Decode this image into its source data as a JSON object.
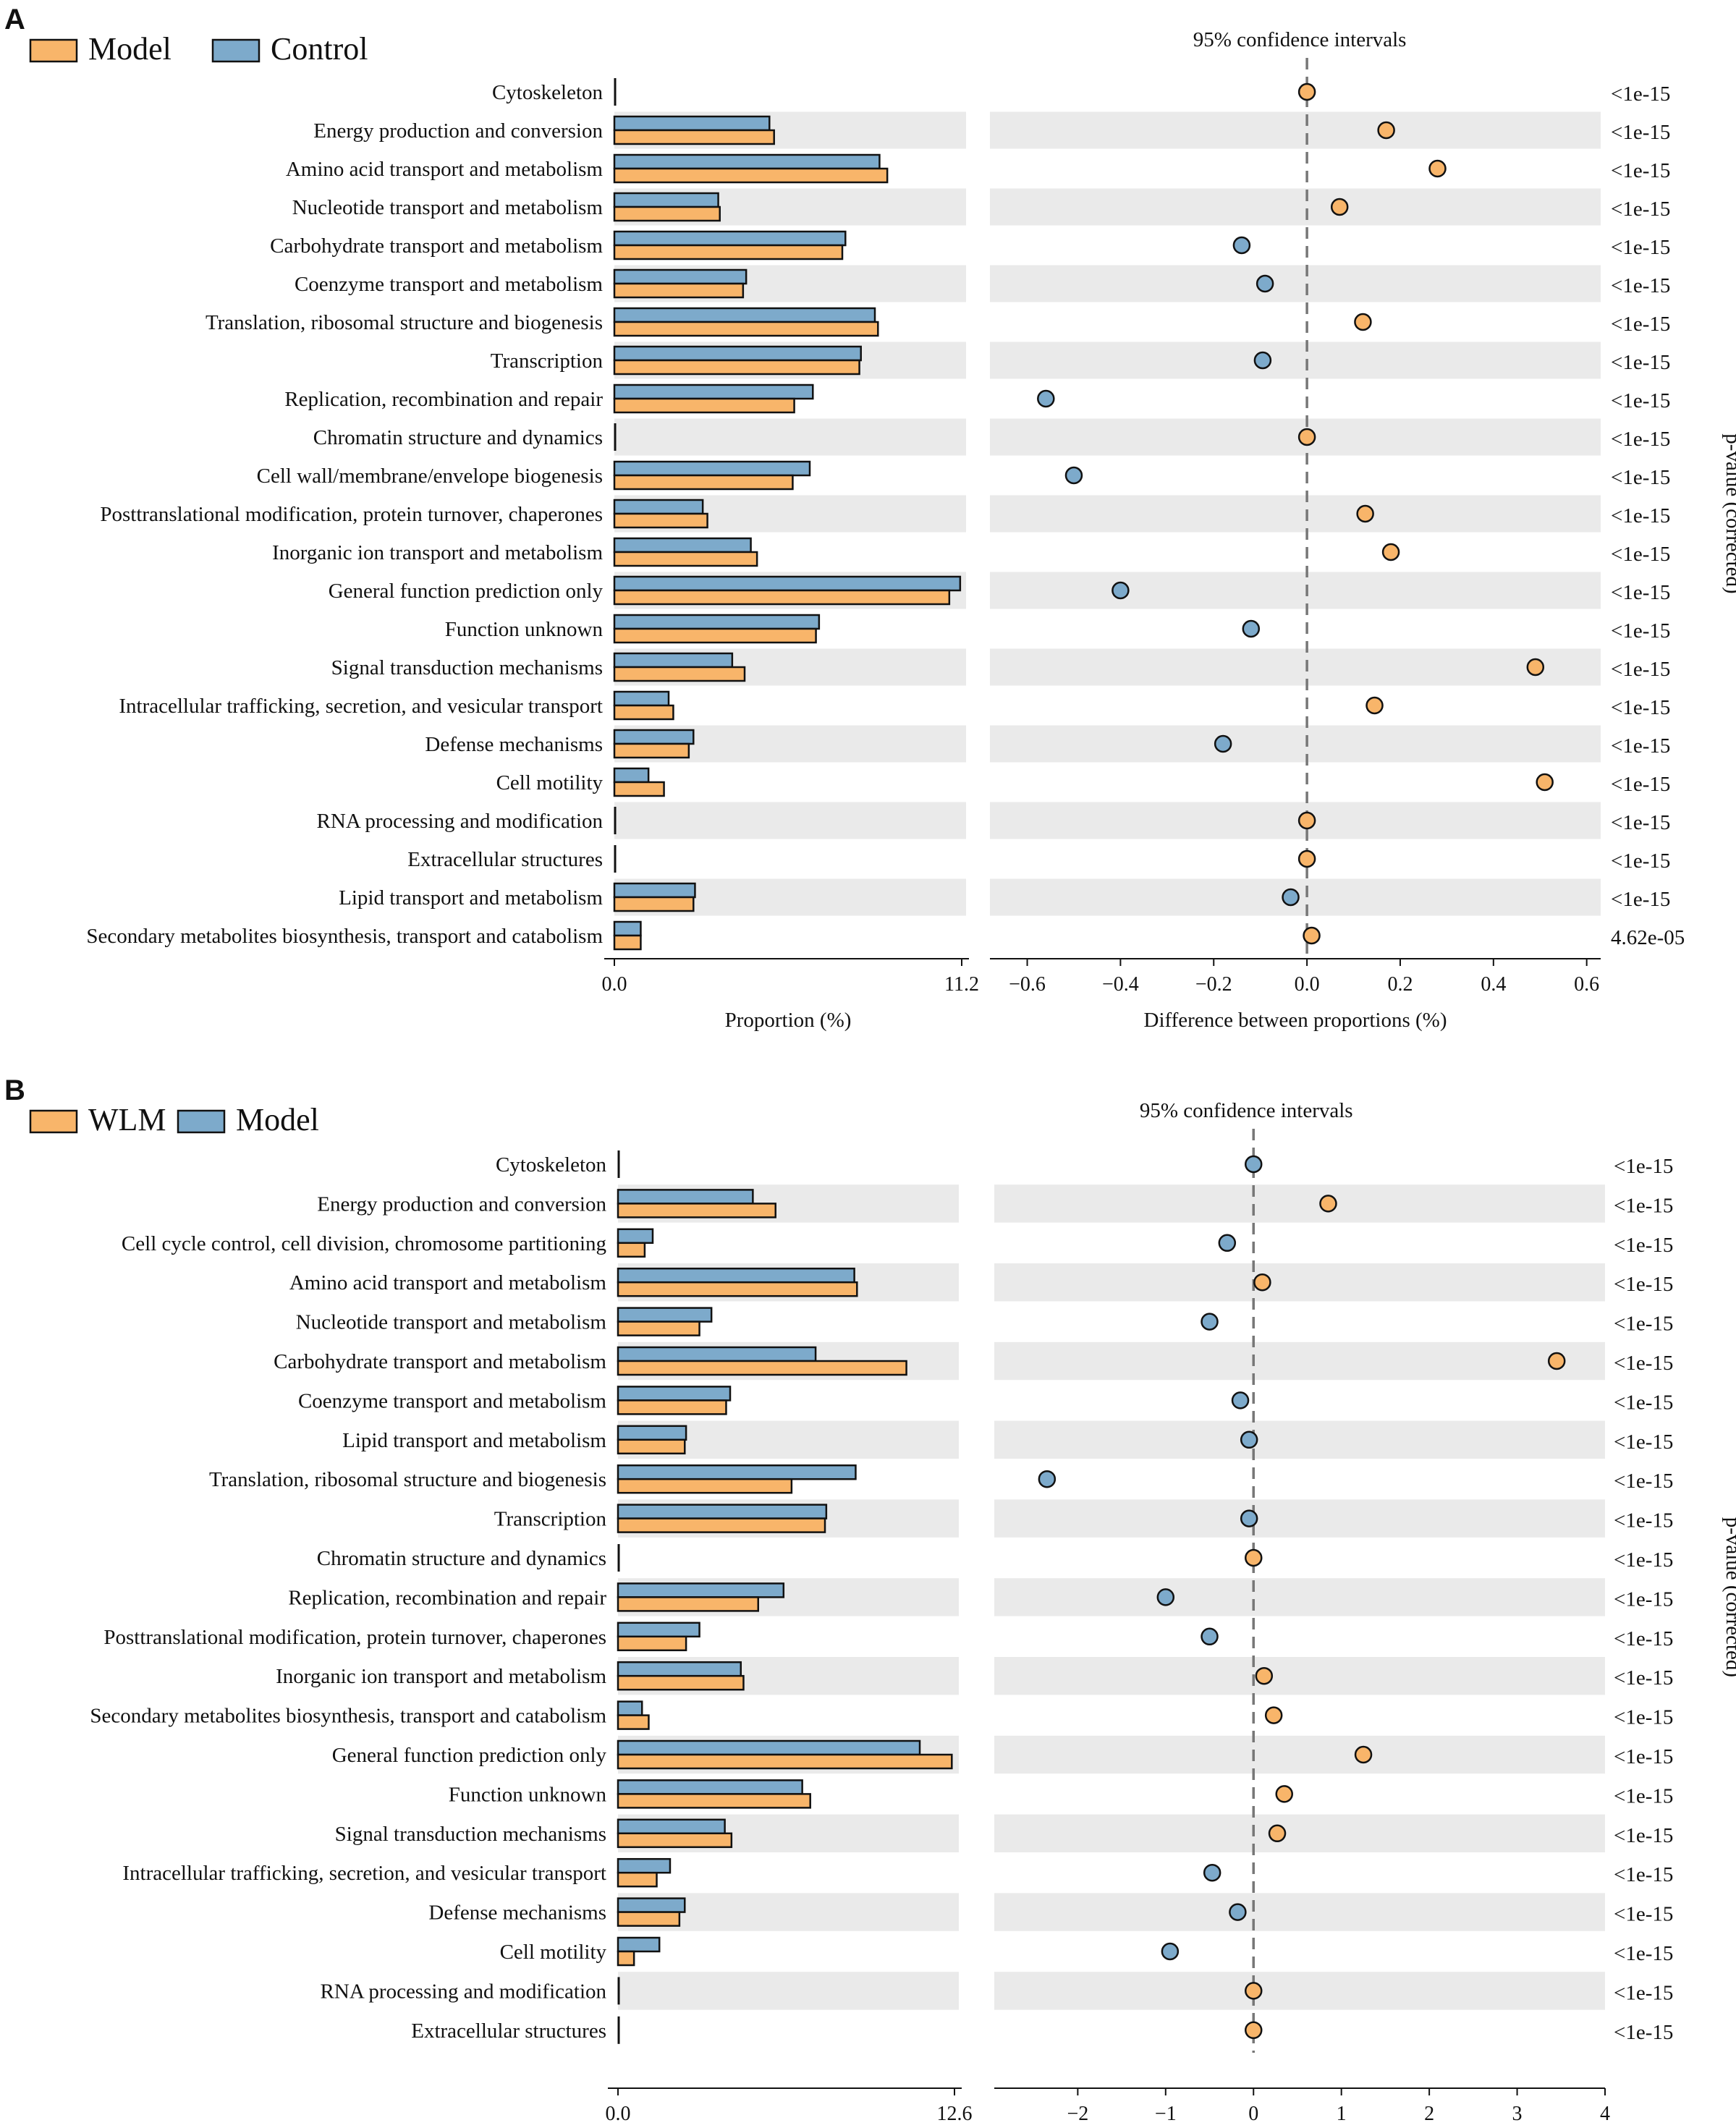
{
  "colors": {
    "orange": "#F8B56A",
    "blue": "#7DAACB",
    "stripe": "#EAEAEA",
    "edge": "#111111"
  },
  "chart_data": [
    {
      "type": "bar",
      "panel_label": "A",
      "legend": [
        {
          "name": "Model",
          "color": "#F8B56A"
        },
        {
          "name": "Control",
          "color": "#7DAACB"
        }
      ],
      "ci_title": "95% confidence intervals",
      "pvalue_label": "p-value (corrected)",
      "left_xlabel": "Proportion (%)",
      "right_xlabel": "Difference between proportions (%)",
      "left_xlim": [
        0,
        11.2
      ],
      "left_ticks": [
        "0.0",
        "11.2"
      ],
      "right_xlim": [
        -0.68,
        0.63
      ],
      "right_ticks": [
        -0.6,
        -0.4,
        -0.2,
        0.0,
        0.2,
        0.4,
        0.6
      ],
      "right_tick_labels": [
        "−0.6",
        "−0.4",
        "−0.2",
        "0.0",
        "0.2",
        "0.4",
        "0.6"
      ],
      "categories": [
        "Cytoskeleton",
        "Energy production and conversion",
        "Amino acid transport and metabolism",
        "Nucleotide transport and metabolism",
        "Carbohydrate transport and metabolism",
        "Coenzyme transport and metabolism",
        "Translation, ribosomal structure and biogenesis",
        "Transcription",
        "Replication, recombination and repair",
        "Chromatin structure and dynamics",
        "Cell wall/membrane/envelope biogenesis",
        "Posttranslational modification, protein turnover, chaperones",
        "Inorganic ion transport and metabolism",
        "General function prediction only",
        "Function unknown",
        "Signal transduction mechanisms",
        "Intracellular trafficking, secretion, and vesicular transport",
        "Defense mechanisms",
        "Cell motility",
        "RNA processing and modification",
        "Extracellular structures",
        "Lipid transport and metabolism",
        "Secondary metabolites biosynthesis, transport and catabolism"
      ],
      "series": [
        {
          "name": "Control",
          "values": [
            0.02,
            5.0,
            8.55,
            3.35,
            7.45,
            4.25,
            8.4,
            7.95,
            6.4,
            0.02,
            6.3,
            2.85,
            4.4,
            11.15,
            6.6,
            3.8,
            1.75,
            2.55,
            1.1,
            0.02,
            0.02,
            2.6,
            0.85
          ]
        },
        {
          "name": "Model",
          "values": [
            0.02,
            5.15,
            8.8,
            3.4,
            7.35,
            4.15,
            8.5,
            7.9,
            5.8,
            0.02,
            5.75,
            3.0,
            4.6,
            10.8,
            6.5,
            4.2,
            1.9,
            2.4,
            1.6,
            0.02,
            0.02,
            2.55,
            0.85
          ]
        }
      ],
      "differences": [
        0.0,
        0.17,
        0.28,
        0.07,
        -0.14,
        -0.09,
        0.12,
        -0.095,
        -0.56,
        0.0,
        -0.5,
        0.125,
        0.18,
        -0.4,
        -0.12,
        0.49,
        0.145,
        -0.18,
        0.51,
        0.0,
        0.0,
        -0.035,
        0.01
      ],
      "point_colors": [
        "orange",
        "orange",
        "orange",
        "orange",
        "blue",
        "blue",
        "orange",
        "blue",
        "blue",
        "orange",
        "blue",
        "orange",
        "orange",
        "blue",
        "blue",
        "orange",
        "orange",
        "blue",
        "orange",
        "orange",
        "orange",
        "blue",
        "orange"
      ],
      "pvalues": [
        "<1e-15",
        "<1e-15",
        "<1e-15",
        "<1e-15",
        "<1e-15",
        "<1e-15",
        "<1e-15",
        "<1e-15",
        "<1e-15",
        "<1e-15",
        "<1e-15",
        "<1e-15",
        "<1e-15",
        "<1e-15",
        "<1e-15",
        "<1e-15",
        "<1e-15",
        "<1e-15",
        "<1e-15",
        "<1e-15",
        "<1e-15",
        "<1e-15",
        "4.62e-05"
      ]
    },
    {
      "type": "bar",
      "panel_label": "B",
      "legend": [
        {
          "name": "WLM",
          "color": "#F8B56A"
        },
        {
          "name": "Model",
          "color": "#7DAACB"
        }
      ],
      "ci_title": "95% confidence intervals",
      "pvalue_label": "p-value (corrected)",
      "left_xlabel": "Proportion (%)",
      "right_xlabel": "Difference between proportions (%)",
      "left_xlim": [
        0,
        12.6
      ],
      "left_ticks": [
        "0.0",
        "12.6"
      ],
      "right_xlim": [
        -2.95,
        4.0
      ],
      "right_ticks": [
        -2,
        -1,
        0,
        1,
        2,
        3,
        4
      ],
      "right_tick_labels": [
        "−2",
        "−1",
        "0",
        "1",
        "2",
        "3",
        "4"
      ],
      "categories": [
        "Cytoskeleton",
        "Energy production and conversion",
        "Cell cycle control, cell division, chromosome partitioning",
        "Amino acid transport and metabolism",
        "Nucleotide transport and metabolism",
        "Carbohydrate transport and metabolism",
        "Coenzyme transport and metabolism",
        "Lipid transport and metabolism",
        "Translation, ribosomal structure and biogenesis",
        "Transcription",
        "Chromatin structure and dynamics",
        "Replication, recombination and repair",
        "Posttranslational modification, protein turnover, chaperones",
        "Inorganic ion transport and metabolism",
        "Secondary metabolites biosynthesis, transport and catabolism",
        "General function prediction only",
        "Function unknown",
        "Signal transduction mechanisms",
        "Intracellular trafficking, secretion, and vesicular transport",
        "Defense mechanisms",
        "Cell motility",
        "RNA processing and modification",
        "Extracellular structures"
      ],
      "series": [
        {
          "name": "Model",
          "values": [
            0.02,
            5.05,
            1.3,
            8.85,
            3.5,
            7.4,
            4.2,
            2.55,
            8.9,
            7.8,
            0.02,
            6.2,
            3.05,
            4.6,
            0.9,
            11.3,
            6.9,
            4.0,
            1.95,
            2.5,
            1.55,
            0.02,
            0.02
          ]
        },
        {
          "name": "WLM",
          "values": [
            0.02,
            5.9,
            1.0,
            8.95,
            3.05,
            10.8,
            4.05,
            2.5,
            6.5,
            7.75,
            0.02,
            5.25,
            2.55,
            4.7,
            1.15,
            12.5,
            7.2,
            4.25,
            1.45,
            2.3,
            0.6,
            0.02,
            0.02
          ]
        }
      ],
      "differences": [
        0.0,
        0.85,
        -0.3,
        0.1,
        -0.5,
        3.45,
        -0.15,
        -0.05,
        -2.35,
        -0.05,
        0.0,
        -1.0,
        -0.5,
        0.12,
        0.23,
        1.25,
        0.35,
        0.27,
        -0.47,
        -0.18,
        -0.95,
        0.0,
        0.0
      ],
      "point_colors": [
        "blue",
        "orange",
        "blue",
        "orange",
        "blue",
        "orange",
        "blue",
        "blue",
        "blue",
        "blue",
        "orange",
        "blue",
        "blue",
        "orange",
        "orange",
        "orange",
        "orange",
        "orange",
        "blue",
        "blue",
        "blue",
        "orange",
        "orange"
      ],
      "pvalues": [
        "<1e-15",
        "<1e-15",
        "<1e-15",
        "<1e-15",
        "<1e-15",
        "<1e-15",
        "<1e-15",
        "<1e-15",
        "<1e-15",
        "<1e-15",
        "<1e-15",
        "<1e-15",
        "<1e-15",
        "<1e-15",
        "<1e-15",
        "<1e-15",
        "<1e-15",
        "<1e-15",
        "<1e-15",
        "<1e-15",
        "<1e-15",
        "<1e-15",
        "<1e-15"
      ]
    }
  ]
}
